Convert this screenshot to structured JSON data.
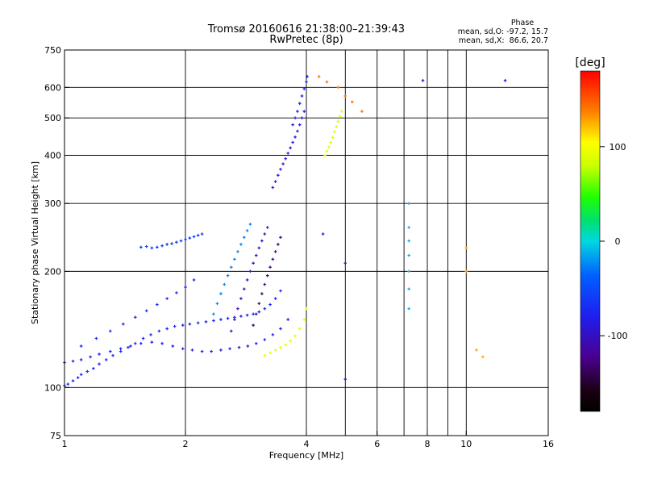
{
  "header": {
    "title": "Tromsø 20160616 21:38:00–21:39:43",
    "subtitle": "RwPretec (8p)"
  },
  "phase_box": {
    "heading": "Phase",
    "line_o": "mean, sd,O: -97.2, 15.7",
    "line_x": "mean, sd,X:  86.6, 20.7"
  },
  "colorbar": {
    "unit": "[deg]",
    "range": [
      -180,
      180
    ],
    "ticks": [
      {
        "value": 100,
        "label": "100"
      },
      {
        "value": 0,
        "label": "0"
      },
      {
        "value": -100,
        "label": "-100"
      }
    ]
  },
  "chart_data": {
    "type": "scatter",
    "title": "Tromsø 20160616 21:38:00–21:39:43",
    "subtitle": "RwPretec (8p)",
    "xlabel": "Frequency [MHz]",
    "ylabel": "Stationary phase Virtual Height [km]",
    "x_scale": "log",
    "y_scale": "log",
    "xlim": [
      1,
      16
    ],
    "ylim": [
      75,
      750
    ],
    "grid": true,
    "x_ticks": [
      {
        "value": 1,
        "label": "1"
      },
      {
        "value": 2,
        "label": "2"
      },
      {
        "value": 4,
        "label": "4"
      },
      {
        "value": 6,
        "label": "6"
      },
      {
        "value": 8,
        "label": "8"
      },
      {
        "value": 10,
        "label": "10"
      },
      {
        "value": 16,
        "label": "16"
      }
    ],
    "x_gridlines": [
      2,
      4,
      5,
      6,
      7,
      8,
      9,
      10
    ],
    "y_ticks": [
      {
        "value": 75,
        "label": "75"
      },
      {
        "value": 100,
        "label": "100"
      },
      {
        "value": 200,
        "label": "200"
      },
      {
        "value": 300,
        "label": "300"
      },
      {
        "value": 400,
        "label": "400"
      },
      {
        "value": 500,
        "label": "500"
      },
      {
        "value": 600,
        "label": "600"
      },
      {
        "value": 750,
        "label": "750"
      }
    ],
    "y_gridlines": [
      100,
      200,
      300,
      400,
      500,
      600
    ],
    "color_scale": "phase_deg",
    "traces": [
      {
        "x": [
          1.0,
          1.02,
          1.05,
          1.08,
          1.1,
          1.14,
          1.18,
          1.22,
          1.27,
          1.32,
          1.38,
          1.44,
          1.5,
          1.57,
          1.64,
          1.72,
          1.8,
          1.88,
          1.97,
          2.05,
          2.15,
          2.25,
          2.35,
          2.45,
          2.55,
          2.65,
          2.75,
          2.85,
          2.95,
          3.05,
          3.15,
          3.25,
          3.35,
          3.45
        ],
        "y": [
          101,
          102,
          104,
          106,
          108,
          110,
          112,
          115,
          118,
          121,
          124,
          127,
          130,
          134,
          137,
          140,
          142,
          144,
          145,
          146,
          147,
          148,
          149,
          150,
          151,
          152,
          153,
          154,
          155,
          157,
          160,
          164,
          170,
          178
        ],
        "phase": -95
      },
      {
        "x": [
          1.0,
          1.05,
          1.1,
          1.16,
          1.22,
          1.3,
          1.38,
          1.46,
          1.55,
          1.65,
          1.75,
          1.86,
          1.97,
          2.08,
          2.2,
          2.32,
          2.45,
          2.58,
          2.72,
          2.86,
          3.0,
          3.15,
          3.3,
          3.45,
          3.6
        ],
        "y": [
          116,
          117,
          118,
          120,
          122,
          124,
          126,
          128,
          130,
          131,
          130,
          128,
          126,
          125,
          124,
          124,
          125,
          126,
          127,
          128,
          130,
          133,
          137,
          142,
          150
        ],
        "phase": -100
      },
      {
        "x": [
          1.1,
          1.2,
          1.3,
          1.4,
          1.5,
          1.6,
          1.7,
          1.8,
          1.9,
          2.0,
          2.1
        ],
        "y": [
          128,
          134,
          140,
          146,
          152,
          158,
          164,
          170,
          176,
          182,
          190
        ],
        "phase": -90
      },
      {
        "x": [
          1.55,
          1.6,
          1.65,
          1.7,
          1.75,
          1.8,
          1.85,
          1.9,
          1.95,
          2.0,
          2.05,
          2.1,
          2.15,
          2.2
        ],
        "y": [
          231,
          232,
          230,
          231,
          233,
          235,
          236,
          238,
          240,
          242,
          244,
          246,
          248,
          250
        ],
        "phase": -85
      },
      {
        "x": [
          2.35,
          2.4,
          2.45,
          2.5,
          2.55,
          2.6,
          2.65,
          2.7,
          2.75,
          2.8,
          2.85,
          2.9
        ],
        "y": [
          155,
          165,
          175,
          185,
          195,
          205,
          215,
          225,
          235,
          245,
          255,
          265
        ],
        "phase": -45
      },
      {
        "x": [
          2.6,
          2.65,
          2.7,
          2.75,
          2.8,
          2.85,
          2.9,
          2.95,
          3.0,
          3.05,
          3.1,
          3.15,
          3.2
        ],
        "y": [
          140,
          150,
          160,
          170,
          180,
          190,
          200,
          210,
          220,
          230,
          240,
          250,
          260
        ],
        "phase": -120
      },
      {
        "x": [
          2.95,
          3.0,
          3.05,
          3.1,
          3.15,
          3.2,
          3.25,
          3.3,
          3.35,
          3.4,
          3.45
        ],
        "y": [
          145,
          155,
          165,
          175,
          185,
          195,
          205,
          215,
          225,
          235,
          245
        ],
        "phase": -140
      },
      {
        "x": [
          3.3,
          3.35,
          3.4,
          3.45,
          3.5,
          3.55,
          3.6,
          3.65,
          3.7,
          3.75,
          3.8,
          3.85,
          3.9,
          3.95
        ],
        "y": [
          330,
          342,
          355,
          368,
          380,
          392,
          405,
          418,
          432,
          446,
          462,
          480,
          500,
          520
        ],
        "phase": -105
      },
      {
        "x": [
          3.7,
          3.75,
          3.8,
          3.85,
          3.9,
          3.95,
          4.0,
          4.02
        ],
        "y": [
          480,
          500,
          520,
          545,
          570,
          595,
          620,
          640
        ],
        "phase": -100
      },
      {
        "x": [
          3.15,
          3.25,
          3.35,
          3.45,
          3.55,
          3.65,
          3.75,
          3.85,
          3.95,
          4.0
        ],
        "y": [
          121,
          123,
          125,
          127,
          129,
          132,
          136,
          142,
          150,
          160
        ],
        "phase": 95
      },
      {
        "x": [
          4.45,
          4.5,
          4.55,
          4.6,
          4.65,
          4.7,
          4.75,
          4.8,
          4.85,
          4.9
        ],
        "y": [
          400,
          410,
          420,
          432,
          445,
          460,
          475,
          490,
          505,
          520
        ],
        "phase": 90
      },
      {
        "x": [
          7.2,
          7.2,
          7.2,
          7.2,
          7.2,
          7.2,
          7.2
        ],
        "y": [
          160,
          180,
          200,
          220,
          240,
          260,
          300
        ],
        "phase": -30
      },
      {
        "x": [
          10.0,
          10.0,
          10.6,
          11.0
        ],
        "y": [
          200,
          230,
          125,
          120
        ],
        "phase": 140
      },
      {
        "x": [
          4.8,
          5.0,
          5.2,
          5.5,
          4.3,
          4.5
        ],
        "y": [
          600,
          570,
          550,
          520,
          640,
          620
        ],
        "phase": 155
      },
      {
        "x": [
          5.0,
          5.0,
          4.4,
          7.8,
          12.5
        ],
        "y": [
          105,
          210,
          250,
          625,
          625
        ],
        "phase": -110
      }
    ]
  }
}
